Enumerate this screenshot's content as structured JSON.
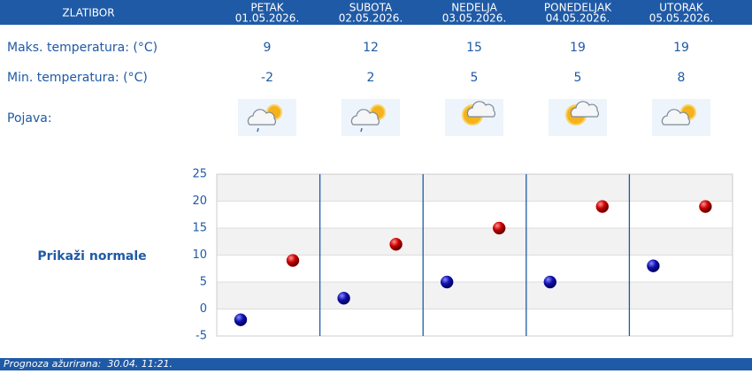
{
  "header": {
    "location": "ZLATIBOR"
  },
  "days": [
    {
      "name": "PETAK",
      "date": "01.05.2026."
    },
    {
      "name": "SUBOTA",
      "date": "02.05.2026."
    },
    {
      "name": "NEDELJA",
      "date": "03.05.2026."
    },
    {
      "name": "PONEDELJAK",
      "date": "04.05.2026."
    },
    {
      "name": "UTORAK",
      "date": "05.05.2026."
    }
  ],
  "row_labels": {
    "max": "Maks. temperatura: (°C)",
    "min": "Min. temperatura: (°C)",
    "weather": "Pojava:"
  },
  "chart_data": {
    "type": "dot",
    "ylim": [
      -5,
      25
    ],
    "yticks": [
      -5,
      0,
      5,
      10,
      15,
      20,
      25
    ],
    "grid": true,
    "series": [
      {
        "color": "#1010b0",
        "values": [
          -2,
          2,
          5,
          5,
          8
        ]
      },
      {
        "color": "#cc0000",
        "values": [
          9,
          12,
          15,
          19,
          19
        ]
      }
    ]
  },
  "toggle": "Prikaži normale",
  "footer": "Prognoza ažurirana:  30.04. 11:21."
}
